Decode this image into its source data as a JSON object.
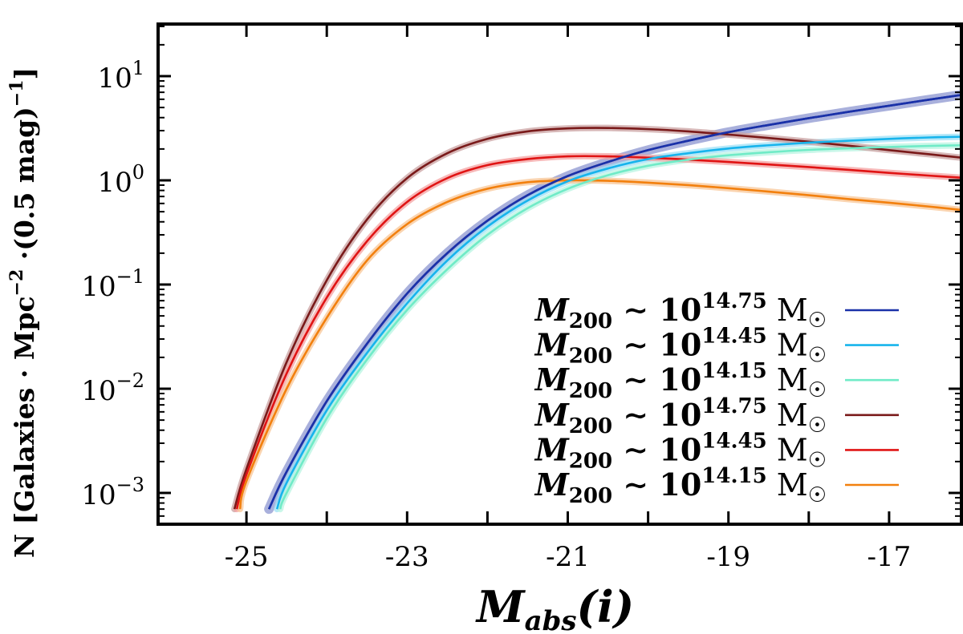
{
  "chart_data": {
    "type": "line",
    "xlabel": "M_abs(i)",
    "ylabel": "N [Galaxies · Mpc^-2 ·(0.5 mag)^-1]",
    "xlabel_parts": {
      "base": "M",
      "sub": "abs",
      "rest": "(i)"
    },
    "ylabel_parts": {
      "pre": "N [Galaxies · Mpc",
      "sup1": "−2",
      "mid": " ·(0.5 mag)",
      "sup2": "−1",
      "post": "]"
    },
    "xlim": [
      -26.1,
      -16.1
    ],
    "ylim_log10": [
      -3.3,
      1.5
    ],
    "yscale": "log",
    "x_ticks": [
      -25,
      -23,
      -21,
      -19,
      -17
    ],
    "x_tick_labels": [
      "-25",
      "-23",
      "-21",
      "-19",
      "-17"
    ],
    "x_minor_ticks": [
      -24,
      -22,
      -20,
      -18
    ],
    "y_ticks": [
      {
        "base": "10",
        "exp": "1",
        "value": 1
      },
      {
        "base": "10",
        "exp": "0",
        "value": 0
      },
      {
        "base": "10",
        "exp": "−1",
        "value": -1
      },
      {
        "base": "10",
        "exp": "−2",
        "value": -2
      },
      {
        "base": "10",
        "exp": "−3",
        "value": -3
      }
    ],
    "legend_position": "lower-right",
    "series": [
      {
        "name": "M200 ~ 10^14.75 M☉",
        "legend": {
          "m": "M",
          "msub": "200",
          "tilde": "∼",
          "ten": "10",
          "exp": "14.75",
          "unit": "M",
          "sun": "☉"
        },
        "color": "#1a31a8",
        "band": "#8c95d0",
        "bandwidth": 0.11,
        "x": [
          -24.72,
          -24.5,
          -24.0,
          -23.5,
          -23.0,
          -22.5,
          -22.0,
          -21.5,
          -21.0,
          -20.5,
          -20.0,
          -19.5,
          -19.0,
          -18.5,
          -18.0,
          -17.5,
          -17.0,
          -16.5,
          -16.1
        ],
        "y": [
          0.0007,
          0.0016,
          0.0076,
          0.027,
          0.082,
          0.2,
          0.41,
          0.72,
          1.1,
          1.5,
          1.95,
          2.4,
          2.9,
          3.4,
          3.95,
          4.55,
          5.2,
          5.95,
          6.6
        ]
      },
      {
        "name": "M200 ~ 10^14.45 M☉",
        "legend": {
          "m": "M",
          "msub": "200",
          "tilde": "∼",
          "ten": "10",
          "exp": "14.45",
          "unit": "M",
          "sun": "☉"
        },
        "color": "#17b4ec",
        "band": "#9fe0f6",
        "bandwidth": 0.05,
        "x": [
          -24.62,
          -24.5,
          -24.0,
          -23.5,
          -23.0,
          -22.5,
          -22.0,
          -21.5,
          -21.0,
          -20.5,
          -20.0,
          -19.5,
          -19.0,
          -18.5,
          -18.0,
          -17.5,
          -17.0,
          -16.5,
          -16.1
        ],
        "y": [
          0.0007,
          0.00125,
          0.0062,
          0.022,
          0.066,
          0.17,
          0.36,
          0.64,
          0.98,
          1.3,
          1.6,
          1.82,
          2.02,
          2.17,
          2.3,
          2.4,
          2.5,
          2.58,
          2.62
        ]
      },
      {
        "name": "M200 ~ 10^14.15 M☉",
        "legend": {
          "m": "M",
          "msub": "200",
          "tilde": "∼",
          "ten": "10",
          "exp": "14.15",
          "unit": "M",
          "sun": "☉"
        },
        "color": "#70ebc7",
        "band": "#b8f4e2",
        "bandwidth": 0.05,
        "x": [
          -24.58,
          -24.5,
          -24.0,
          -23.5,
          -23.0,
          -22.5,
          -22.0,
          -21.5,
          -21.0,
          -20.5,
          -20.0,
          -19.5,
          -19.0,
          -18.5,
          -18.0,
          -17.5,
          -17.0,
          -16.5,
          -16.1
        ],
        "y": [
          0.0007,
          0.001,
          0.0052,
          0.019,
          0.057,
          0.14,
          0.3,
          0.54,
          0.83,
          1.12,
          1.38,
          1.58,
          1.74,
          1.86,
          1.96,
          2.03,
          2.09,
          2.14,
          2.17
        ]
      },
      {
        "name": "M200 ~ 10^14.75 M☉",
        "legend": {
          "m": "M",
          "msub": "200",
          "tilde": "∼",
          "ten": "10",
          "exp": "14.75",
          "unit": "M",
          "sun": "☉"
        },
        "color": "#7a1a1a",
        "band": "#c9a0a0",
        "bandwidth": 0.05,
        "x": [
          -25.15,
          -25.0,
          -24.5,
          -24.0,
          -23.5,
          -23.0,
          -22.5,
          -22.0,
          -21.5,
          -21.0,
          -20.5,
          -20.0,
          -19.5,
          -19.0,
          -18.5,
          -18.0,
          -17.5,
          -17.0,
          -16.5,
          -16.1
        ],
        "y": [
          0.0007,
          0.0017,
          0.018,
          0.11,
          0.42,
          1.05,
          1.82,
          2.5,
          2.95,
          3.15,
          3.18,
          3.1,
          2.95,
          2.75,
          2.55,
          2.35,
          2.15,
          1.95,
          1.78,
          1.65
        ]
      },
      {
        "name": "M200 ~ 10^14.45 M☉",
        "legend": {
          "m": "M",
          "msub": "200",
          "tilde": "∼",
          "ten": "10",
          "exp": "14.45",
          "unit": "M",
          "sun": "☉"
        },
        "color": "#e01414",
        "band": "#f4a0a0",
        "bandwidth": 0.04,
        "x": [
          -25.12,
          -25.0,
          -24.5,
          -24.0,
          -23.5,
          -23.0,
          -22.5,
          -22.0,
          -21.5,
          -21.0,
          -20.5,
          -20.0,
          -19.5,
          -19.0,
          -18.5,
          -18.0,
          -17.5,
          -17.0,
          -16.5,
          -16.1
        ],
        "y": [
          0.0007,
          0.0015,
          0.014,
          0.075,
          0.26,
          0.62,
          1.05,
          1.4,
          1.6,
          1.7,
          1.7,
          1.65,
          1.58,
          1.5,
          1.42,
          1.34,
          1.26,
          1.18,
          1.11,
          1.06
        ]
      },
      {
        "name": "M200 ~ 10^14.15 M☉",
        "legend": {
          "m": "M",
          "msub": "200",
          "tilde": "∼",
          "ten": "10",
          "exp": "14.15",
          "unit": "M",
          "sun": "☉"
        },
        "color": "#f2800e",
        "band": "#f8c596",
        "bandwidth": 0.04,
        "x": [
          -25.08,
          -25.0,
          -24.5,
          -24.0,
          -23.5,
          -23.0,
          -22.5,
          -22.0,
          -21.5,
          -21.0,
          -20.5,
          -20.0,
          -19.5,
          -19.0,
          -18.5,
          -18.0,
          -17.5,
          -17.0,
          -16.5,
          -16.1
        ],
        "y": [
          0.0007,
          0.0013,
          0.01,
          0.048,
          0.17,
          0.38,
          0.62,
          0.83,
          0.96,
          1.0,
          0.99,
          0.95,
          0.9,
          0.84,
          0.78,
          0.72,
          0.66,
          0.61,
          0.56,
          0.52
        ]
      }
    ]
  }
}
